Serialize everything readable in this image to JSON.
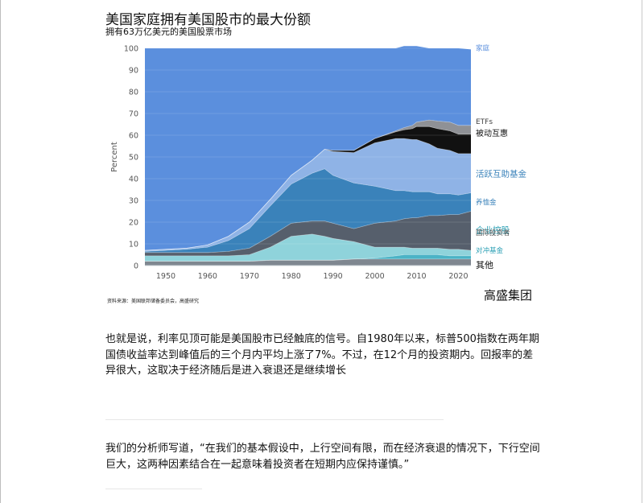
{
  "title": "美国家庭拥有美国股市的最大份额",
  "subtitle": "拥有63万亿美元的美国股票市场",
  "source": "资料来源：美国联邦储备委员会，高盛研究",
  "logo": "高盛集团",
  "paragraphs": [
    "也就是说，利率见顶可能是美国股市已经触底的信号。自1980年以来，标普500指数在两年期国债收益率达到峰值后的三个月内平均上涨了7%。不过，在12个月的投资期内。回报率的差异很大，这取决于经济随后是进入衰退还是继续增长",
    "我们的分析师写道，“在我们的基本假设中，上行空间有限，而在经济衰退的情况下，下行空间巨大，这两种因素结合在一起意味着投资者在短期内应保持谨慎。”"
  ],
  "chart_data": {
    "type": "area",
    "stacked": true,
    "title": "美国家庭拥有美国股市的最大份额",
    "subtitle": "拥有63万亿美元的美国股票市场",
    "xlabel": "",
    "ylabel": "Percent",
    "xlim": [
      1945,
      2023
    ],
    "ylim": [
      0,
      100
    ],
    "xticks": [
      1950,
      1960,
      1970,
      1980,
      1990,
      2000,
      2010,
      2020
    ],
    "yticks": [
      0,
      10,
      20,
      30,
      40,
      50,
      60,
      70,
      80,
      90,
      100
    ],
    "grid": true,
    "legend_placement": "right (labels at series ends)",
    "x": [
      1945,
      1950,
      1955,
      1960,
      1965,
      1970,
      1975,
      1980,
      1985,
      1988,
      1990,
      1995,
      2000,
      2005,
      2007,
      2009,
      2010,
      2013,
      2015,
      2018,
      2020,
      2023
    ],
    "series": [
      {
        "name": "其他",
        "color": "#7f8790",
        "values": [
          2,
          2,
          2,
          2,
          2,
          2,
          2.5,
          2.5,
          2.5,
          2.5,
          2.5,
          3,
          3,
          3,
          3,
          3,
          3,
          3,
          3,
          3,
          3,
          3
        ]
      },
      {
        "name": "对冲基金",
        "color": "#4bb3c6",
        "values": [
          0,
          0,
          0,
          0,
          0,
          0,
          0,
          0,
          0,
          0,
          0,
          0,
          0.5,
          1.5,
          2,
          2,
          2,
          2,
          2,
          1.5,
          1.5,
          1.5
        ]
      },
      {
        "name": "企业控股",
        "color": "#8fd3db",
        "values": [
          2.5,
          2.5,
          2.5,
          2.5,
          2.5,
          3,
          6,
          11,
          12,
          11,
          10,
          8,
          5,
          4,
          3.5,
          3,
          3,
          3,
          3,
          3,
          3,
          2.5
        ]
      },
      {
        "name": "国际投资者",
        "color": "#565f6c",
        "values": [
          1.5,
          1.5,
          1.5,
          1.5,
          2,
          3,
          5,
          6,
          6,
          7,
          7,
          6,
          11,
          12,
          13,
          14,
          14,
          15,
          15,
          16,
          16,
          18
        ]
      },
      {
        "name": "养恤金",
        "color": "#3a82ba",
        "values": [
          0.5,
          1,
          1.5,
          2.5,
          5,
          9,
          14,
          18,
          22,
          24,
          22,
          21,
          17,
          14,
          13,
          12,
          12,
          11,
          10,
          9.5,
          9,
          8.5
        ]
      },
      {
        "name": "活跃互助基金",
        "color": "#8fb3e6",
        "values": [
          0.5,
          0.5,
          0.5,
          1,
          2,
          3,
          3,
          4,
          6,
          9,
          11,
          14,
          20,
          24,
          24,
          24,
          24,
          22,
          21,
          20,
          19,
          18
        ]
      },
      {
        "name": "被动互惠",
        "color": "#111111",
        "values": [
          0,
          0,
          0,
          0,
          0,
          0,
          0,
          0,
          0,
          0,
          0.5,
          1,
          2,
          3,
          4,
          5,
          6,
          8,
          9,
          9,
          9,
          9
        ]
      },
      {
        "name": "ETFs",
        "color": "#8f9196",
        "values": [
          0,
          0,
          0,
          0,
          0,
          0,
          0,
          0,
          0,
          0,
          0,
          0,
          0,
          0.5,
          1,
          1.5,
          2,
          3,
          3.5,
          4,
          4,
          4
        ]
      },
      {
        "name": "家庭",
        "color": "#5b8fdd",
        "values": [
          93,
          92.5,
          92,
          90.5,
          86.5,
          80,
          69.5,
          58.5,
          51.5,
          46.5,
          47,
          47,
          41.5,
          38,
          37.5,
          36.5,
          35,
          33,
          33.5,
          34,
          35.5,
          35
        ]
      }
    ]
  }
}
